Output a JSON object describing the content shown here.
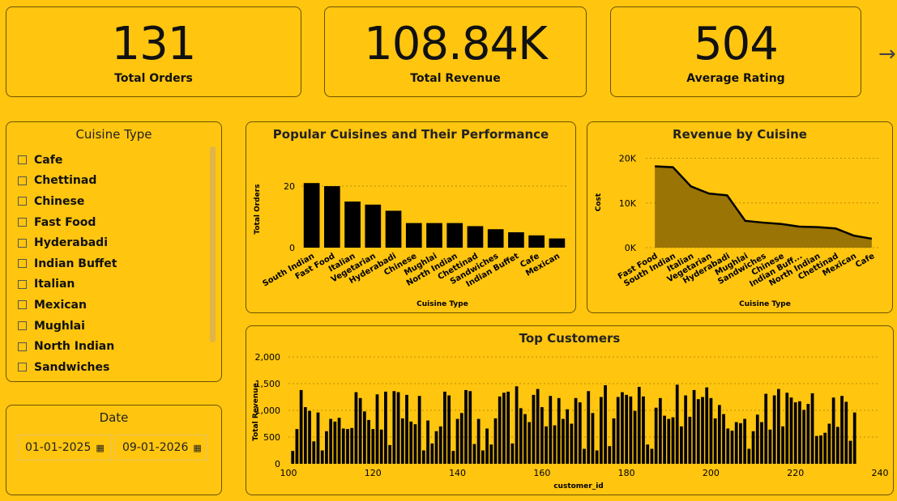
{
  "kpis": [
    {
      "value": "131",
      "label": "Total Orders"
    },
    {
      "value": "108.84K",
      "label": "Total Revenue"
    },
    {
      "value": "504",
      "label": "Average Rating"
    }
  ],
  "nav": {
    "arrow": "→"
  },
  "cuisine_slicer": {
    "title": "Cuisine Type",
    "items": [
      "Cafe",
      "Chettinad",
      "Chinese",
      "Fast Food",
      "Hyderabadi",
      "Indian Buffet",
      "Italian",
      "Mexican",
      "Mughlai",
      "North Indian",
      "Sandwiches"
    ]
  },
  "date_slicer": {
    "title": "Date",
    "start": "01-01-2025",
    "end": "09-01-2026"
  },
  "chart_data": [
    {
      "type": "bar",
      "title": "Popular Cuisines and Their Performance",
      "xlabel": "Cuisine Type",
      "ylabel": "Total Orders",
      "categories": [
        "South Indian",
        "Fast Food",
        "Italian",
        "Vegetarian",
        "Hyderabadi",
        "Chinese",
        "Mughlai",
        "North Indian",
        "Chettinad",
        "Sandwiches",
        "Indian Buffet",
        "Cafe",
        "Mexican"
      ],
      "values": [
        21,
        20,
        15,
        14,
        12,
        8,
        8,
        8,
        7,
        6,
        5,
        4,
        3
      ],
      "yticks": [
        "0",
        "20"
      ],
      "ylim": [
        0,
        25
      ],
      "color": "#000000"
    },
    {
      "type": "area",
      "title": "Revenue by Cuisine",
      "xlabel": "Cuisine Type",
      "ylabel": "Cost",
      "categories": [
        "Fast Food",
        "South Indian",
        "Italian",
        "Vegetarian",
        "Hyderabadi",
        "Mughlai",
        "Sandwiches",
        "Chinese",
        "Indian Buffet",
        "North Indian",
        "Chettinad",
        "Mexican",
        "Cafe"
      ],
      "category_labels": [
        "Fast Food",
        "South Indian",
        "Italian",
        "Vegetarian",
        "Hyderabadi",
        "Mughlai",
        "Sandwiches",
        "Chinese",
        "Indian Buff...",
        "North Indian",
        "Chettinad",
        "Mexican",
        "Cafe"
      ],
      "values": [
        18200,
        18000,
        13700,
        12100,
        11700,
        6000,
        5600,
        5300,
        4700,
        4600,
        4300,
        2700,
        2000
      ],
      "yticks": [
        "0K",
        "10K",
        "20K"
      ],
      "ylim": [
        0,
        21000
      ],
      "fill": "#9A7404",
      "line": "#000000"
    },
    {
      "type": "bar",
      "title": "Top Customers",
      "xlabel": "customer_id",
      "ylabel": "Total Revenue",
      "xlim": [
        100,
        240
      ],
      "xticks": [
        "100",
        "120",
        "140",
        "160",
        "180",
        "200",
        "220",
        "240"
      ],
      "ylim": [
        0,
        2000
      ],
      "yticks": [
        "0",
        "500",
        "1,000",
        "1,500",
        "2,000"
      ],
      "x_start": 101,
      "values": [
        240,
        650,
        1380,
        1060,
        990,
        420,
        960,
        250,
        610,
        840,
        790,
        860,
        660,
        650,
        670,
        1340,
        1230,
        980,
        820,
        650,
        1300,
        640,
        1350,
        350,
        1360,
        1340,
        850,
        1290,
        790,
        740,
        1270,
        250,
        810,
        380,
        610,
        700,
        1350,
        1280,
        240,
        840,
        950,
        1380,
        1360,
        370,
        840,
        250,
        660,
        360,
        850,
        1260,
        1330,
        1350,
        380,
        1450,
        1040,
        930,
        780,
        1290,
        1400,
        1060,
        700,
        1270,
        720,
        1230,
        840,
        1020,
        750,
        1230,
        1150,
        280,
        1360,
        950,
        250,
        1250,
        1470,
        330,
        850,
        1250,
        1340,
        1290,
        1260,
        990,
        1440,
        1260,
        360,
        280,
        1050,
        1230,
        900,
        840,
        870,
        1480,
        700,
        1280,
        880,
        1380,
        1210,
        1250,
        1430,
        1230,
        850,
        1100,
        930,
        660,
        620,
        780,
        760,
        840,
        280,
        610,
        920,
        780,
        1310,
        640,
        1280,
        1400,
        700,
        1330,
        1240,
        1150,
        1170,
        1010,
        1120,
        1320,
        520,
        530,
        580,
        750,
        1240,
        690,
        1270,
        1160,
        430,
        960
      ],
      "color": "#000000"
    }
  ]
}
